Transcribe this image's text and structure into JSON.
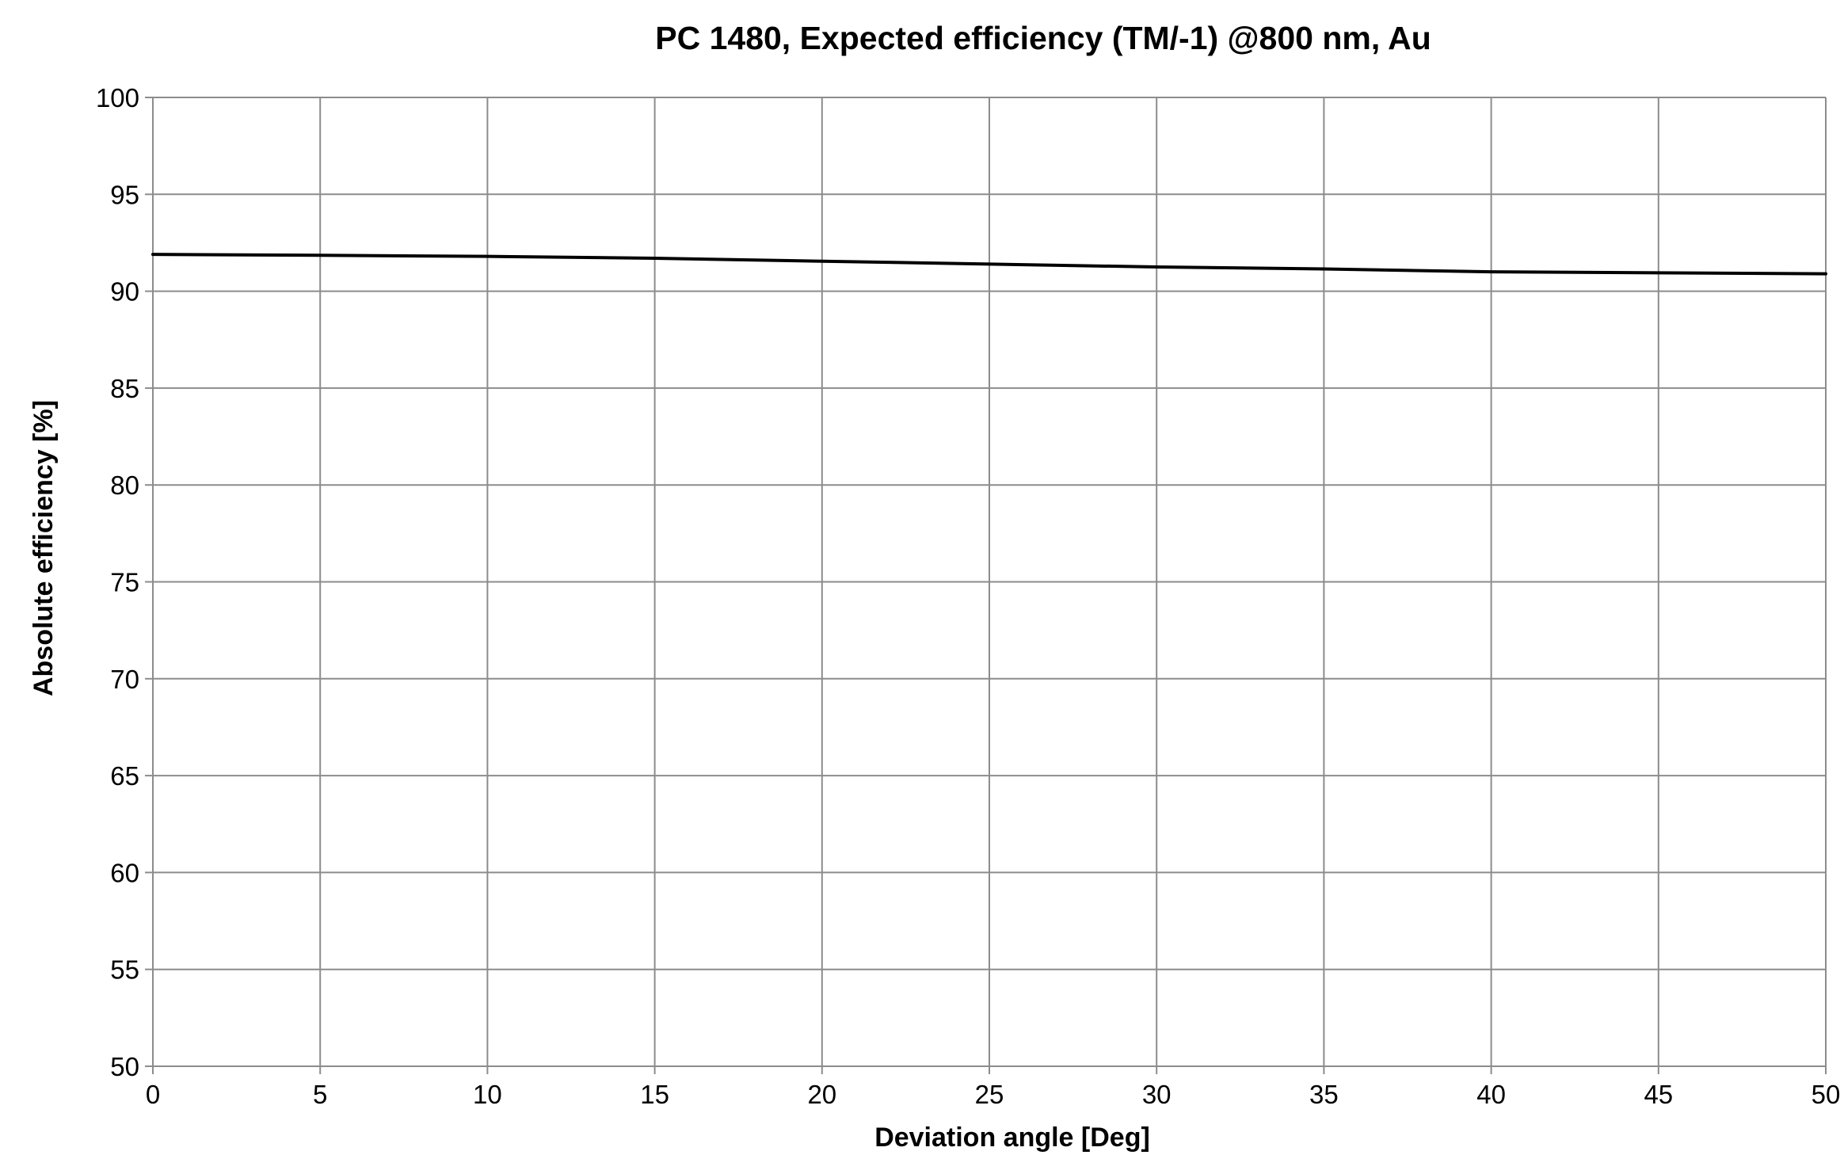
{
  "chart_data": {
    "type": "line",
    "title": "PC 1480, Expected efficiency (TM/-1) @800 nm, Au",
    "xlabel": "Deviation angle [Deg]",
    "ylabel": "Absolute efficiency [%]",
    "xlim": [
      0,
      50
    ],
    "ylim": [
      50,
      100
    ],
    "x_ticks": [
      0,
      5,
      10,
      15,
      20,
      25,
      30,
      35,
      40,
      45,
      50
    ],
    "y_ticks": [
      50,
      55,
      60,
      65,
      70,
      75,
      80,
      85,
      90,
      95,
      100
    ],
    "grid": true,
    "legend": "none",
    "series": [
      {
        "color": "#000000",
        "x": [
          0,
          5,
          10,
          15,
          20,
          25,
          30,
          35,
          40,
          45,
          50
        ],
        "y": [
          91.9,
          91.85,
          91.8,
          91.7,
          91.55,
          91.4,
          91.25,
          91.15,
          91.0,
          90.95,
          90.9
        ]
      }
    ]
  }
}
